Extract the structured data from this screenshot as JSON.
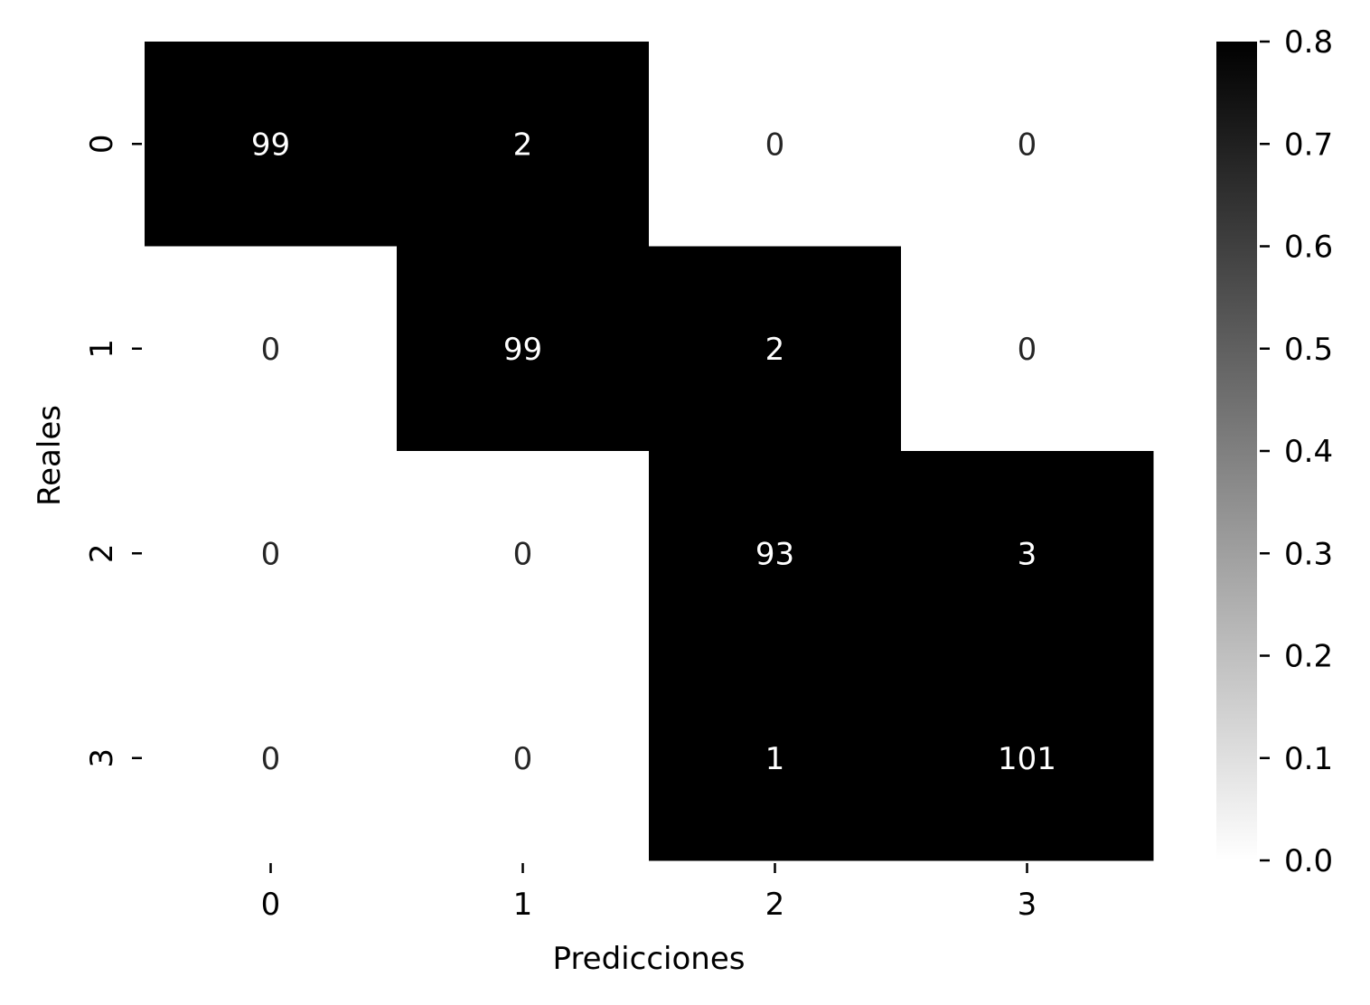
{
  "chart_data": {
    "type": "heatmap",
    "title": "",
    "xlabel": "Predicciones",
    "ylabel": "Reales",
    "x_categories": [
      "0",
      "1",
      "2",
      "3"
    ],
    "y_categories": [
      "0",
      "1",
      "2",
      "3"
    ],
    "cell_labels": [
      [
        "99",
        "2",
        "0",
        "0"
      ],
      [
        "0",
        "99",
        "2",
        "0"
      ],
      [
        "0",
        "0",
        "93",
        "3"
      ],
      [
        "0",
        "0",
        "1",
        "101"
      ]
    ],
    "values": [
      [
        99,
        2,
        0,
        0
      ],
      [
        0,
        99,
        2,
        0
      ],
      [
        0,
        0,
        93,
        3
      ],
      [
        0,
        0,
        1,
        101
      ]
    ],
    "colorbar": {
      "min": 0.0,
      "max": 0.8,
      "ticks": [
        "0.0",
        "0.1",
        "0.2",
        "0.3",
        "0.4",
        "0.5",
        "0.6",
        "0.7",
        "0.8"
      ],
      "color_low": "#ffffff",
      "color_high": "#000000"
    },
    "grid": false,
    "legend": "colorbar-right",
    "colors": {
      "text_on_dark": "#ffffff",
      "text_on_light": "#262626"
    }
  }
}
